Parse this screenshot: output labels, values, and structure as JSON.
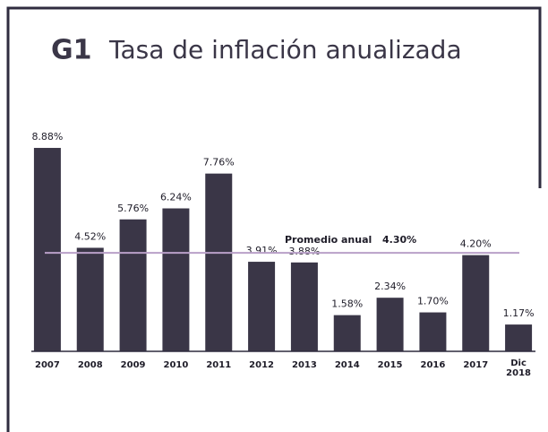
{
  "chart_data": {
    "type": "bar",
    "label": "G1",
    "title": "Tasa de inflación anualizada",
    "categories": [
      "2007",
      "2008",
      "2009",
      "2010",
      "2011",
      "2012",
      "2013",
      "2014",
      "2015",
      "2016",
      "2017",
      "Dic 2018"
    ],
    "values": [
      8.88,
      4.52,
      5.76,
      6.24,
      7.76,
      3.91,
      3.88,
      1.58,
      2.34,
      1.7,
      4.2,
      1.17
    ],
    "value_labels": [
      "8.88%",
      "4.52%",
      "5.76%",
      "6.24%",
      "7.76%",
      "3.91%",
      "3.88%",
      "1.58%",
      "2.34%",
      "1.70%",
      "4.20%",
      "1.17%"
    ],
    "color": "#3a3647",
    "ylim": [
      0,
      10
    ],
    "average": {
      "name": "Promedio anual",
      "value": 4.3,
      "value_label": "4.30%",
      "color": "#b9a0c8"
    }
  }
}
